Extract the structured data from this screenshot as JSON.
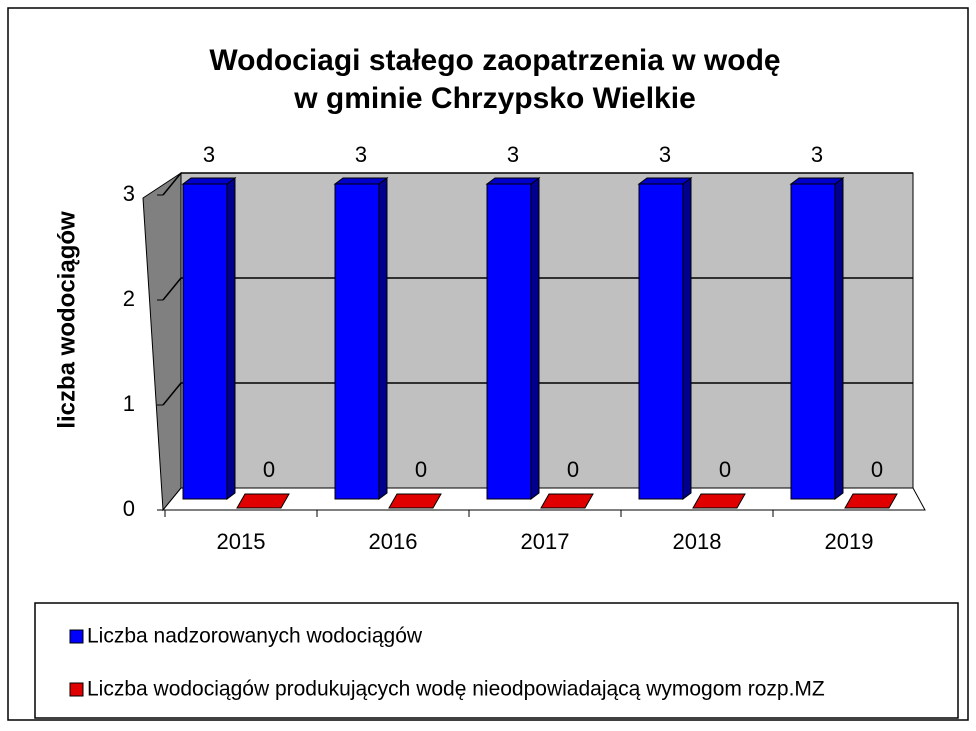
{
  "chart_data": {
    "type": "bar3d",
    "title": [
      "Wodociagi stałego zaopatrzenia w wodę",
      "w gminie Chrzypsko Wielkie"
    ],
    "y_label": "liczba wodociągów",
    "categories": [
      "2015",
      "2016",
      "2017",
      "2018",
      "2019"
    ],
    "series": [
      {
        "name": "Liczba nadzorowanych wodociągów",
        "color": "#0000ff",
        "values": [
          3,
          3,
          3,
          3,
          3
        ]
      },
      {
        "name": "Liczba wodociągów produkujących wodę nieodpowiadającą wymogom rozp.MZ",
        "color": "#e00000",
        "values": [
          0,
          0,
          0,
          0,
          0
        ]
      }
    ],
    "ylim": [
      0,
      3
    ],
    "yticks": [
      0,
      1,
      2,
      3
    ],
    "grid": true,
    "legend": "bottom"
  }
}
